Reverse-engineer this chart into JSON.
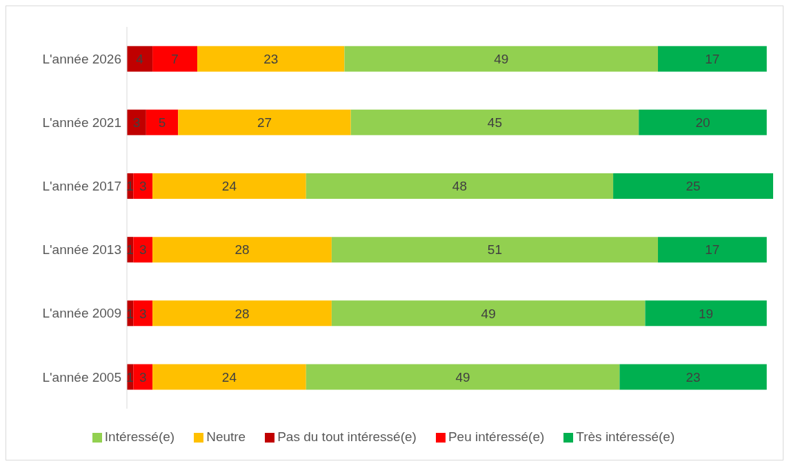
{
  "chart_data": {
    "type": "bar",
    "orientation": "horizontal",
    "stacked": true,
    "data_labels": true,
    "legend": "bottom",
    "grid": false,
    "categories": [
      "L'année 2026",
      "L'année 2021",
      "L'année 2017",
      "L'année 2013",
      "L'année 2009",
      "L'année 2005"
    ],
    "series": [
      {
        "name": "Pas du tout intéressé(e)",
        "color": "#c00000",
        "values": [
          4,
          3,
          1,
          1,
          1,
          1
        ]
      },
      {
        "name": "Peu intéressé(e)",
        "color": "#ff0000",
        "values": [
          7,
          5,
          3,
          3,
          3,
          3
        ]
      },
      {
        "name": "Neutre",
        "color": "#ffc000",
        "values": [
          23,
          27,
          24,
          28,
          28,
          24
        ]
      },
      {
        "name": "Intéressé(e)",
        "color": "#92d050",
        "values": [
          49,
          45,
          48,
          51,
          49,
          49
        ]
      },
      {
        "name": "Très intéressé(e)",
        "color": "#00b050",
        "values": [
          17,
          20,
          25,
          17,
          19,
          23
        ]
      }
    ]
  }
}
